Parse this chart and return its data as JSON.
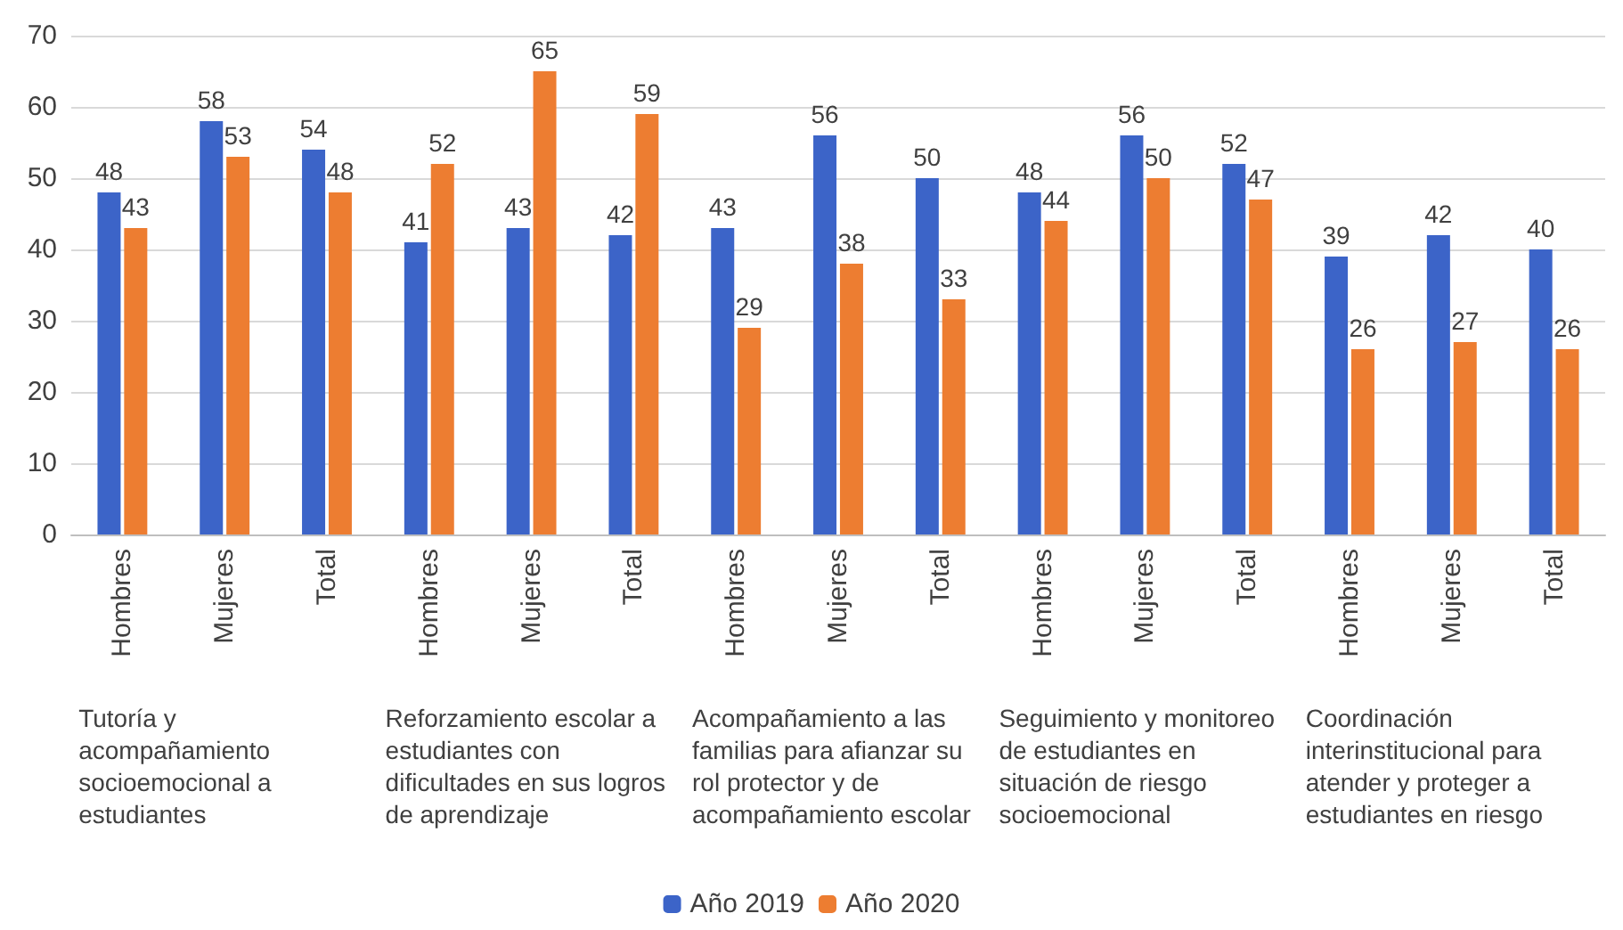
{
  "chart_data": {
    "type": "bar",
    "categories": [
      "Hombres",
      "Mujeres",
      "Total",
      "Hombres",
      "Mujeres",
      "Total",
      "Hombres",
      "Mujeres",
      "Total",
      "Hombres",
      "Mujeres",
      "Total",
      "Hombres",
      "Mujeres",
      "Total"
    ],
    "series": [
      {
        "name": "Año 2019",
        "color": "#3c64c8",
        "values": [
          48,
          58,
          54,
          41,
          43,
          42,
          43,
          56,
          50,
          48,
          56,
          52,
          39,
          42,
          40
        ]
      },
      {
        "name": "Año 2020",
        "color": "#ed7d31",
        "values": [
          43,
          53,
          48,
          52,
          65,
          59,
          29,
          38,
          33,
          44,
          50,
          47,
          26,
          27,
          26
        ]
      }
    ],
    "annotations": [
      "Tutoría y acompañamiento socioemocional a estudiantes",
      "Reforzamiento escolar a estudiantes con dificultades en sus logros de aprendizaje",
      "Acompañamiento a las familias para afianzar su rol protector y de acompañamiento escolar",
      "Seguimiento y monitoreo de estudiantes en situación de riesgo socioemocional",
      "Coordinación interinstitucional para atender y proteger a estudiantes en riesgo"
    ],
    "ylim": [
      0,
      70
    ],
    "yticks": [
      0,
      10,
      20,
      30,
      40,
      50,
      60,
      70
    ],
    "grid": "y",
    "legend": "bottom",
    "data_labels": true
  }
}
